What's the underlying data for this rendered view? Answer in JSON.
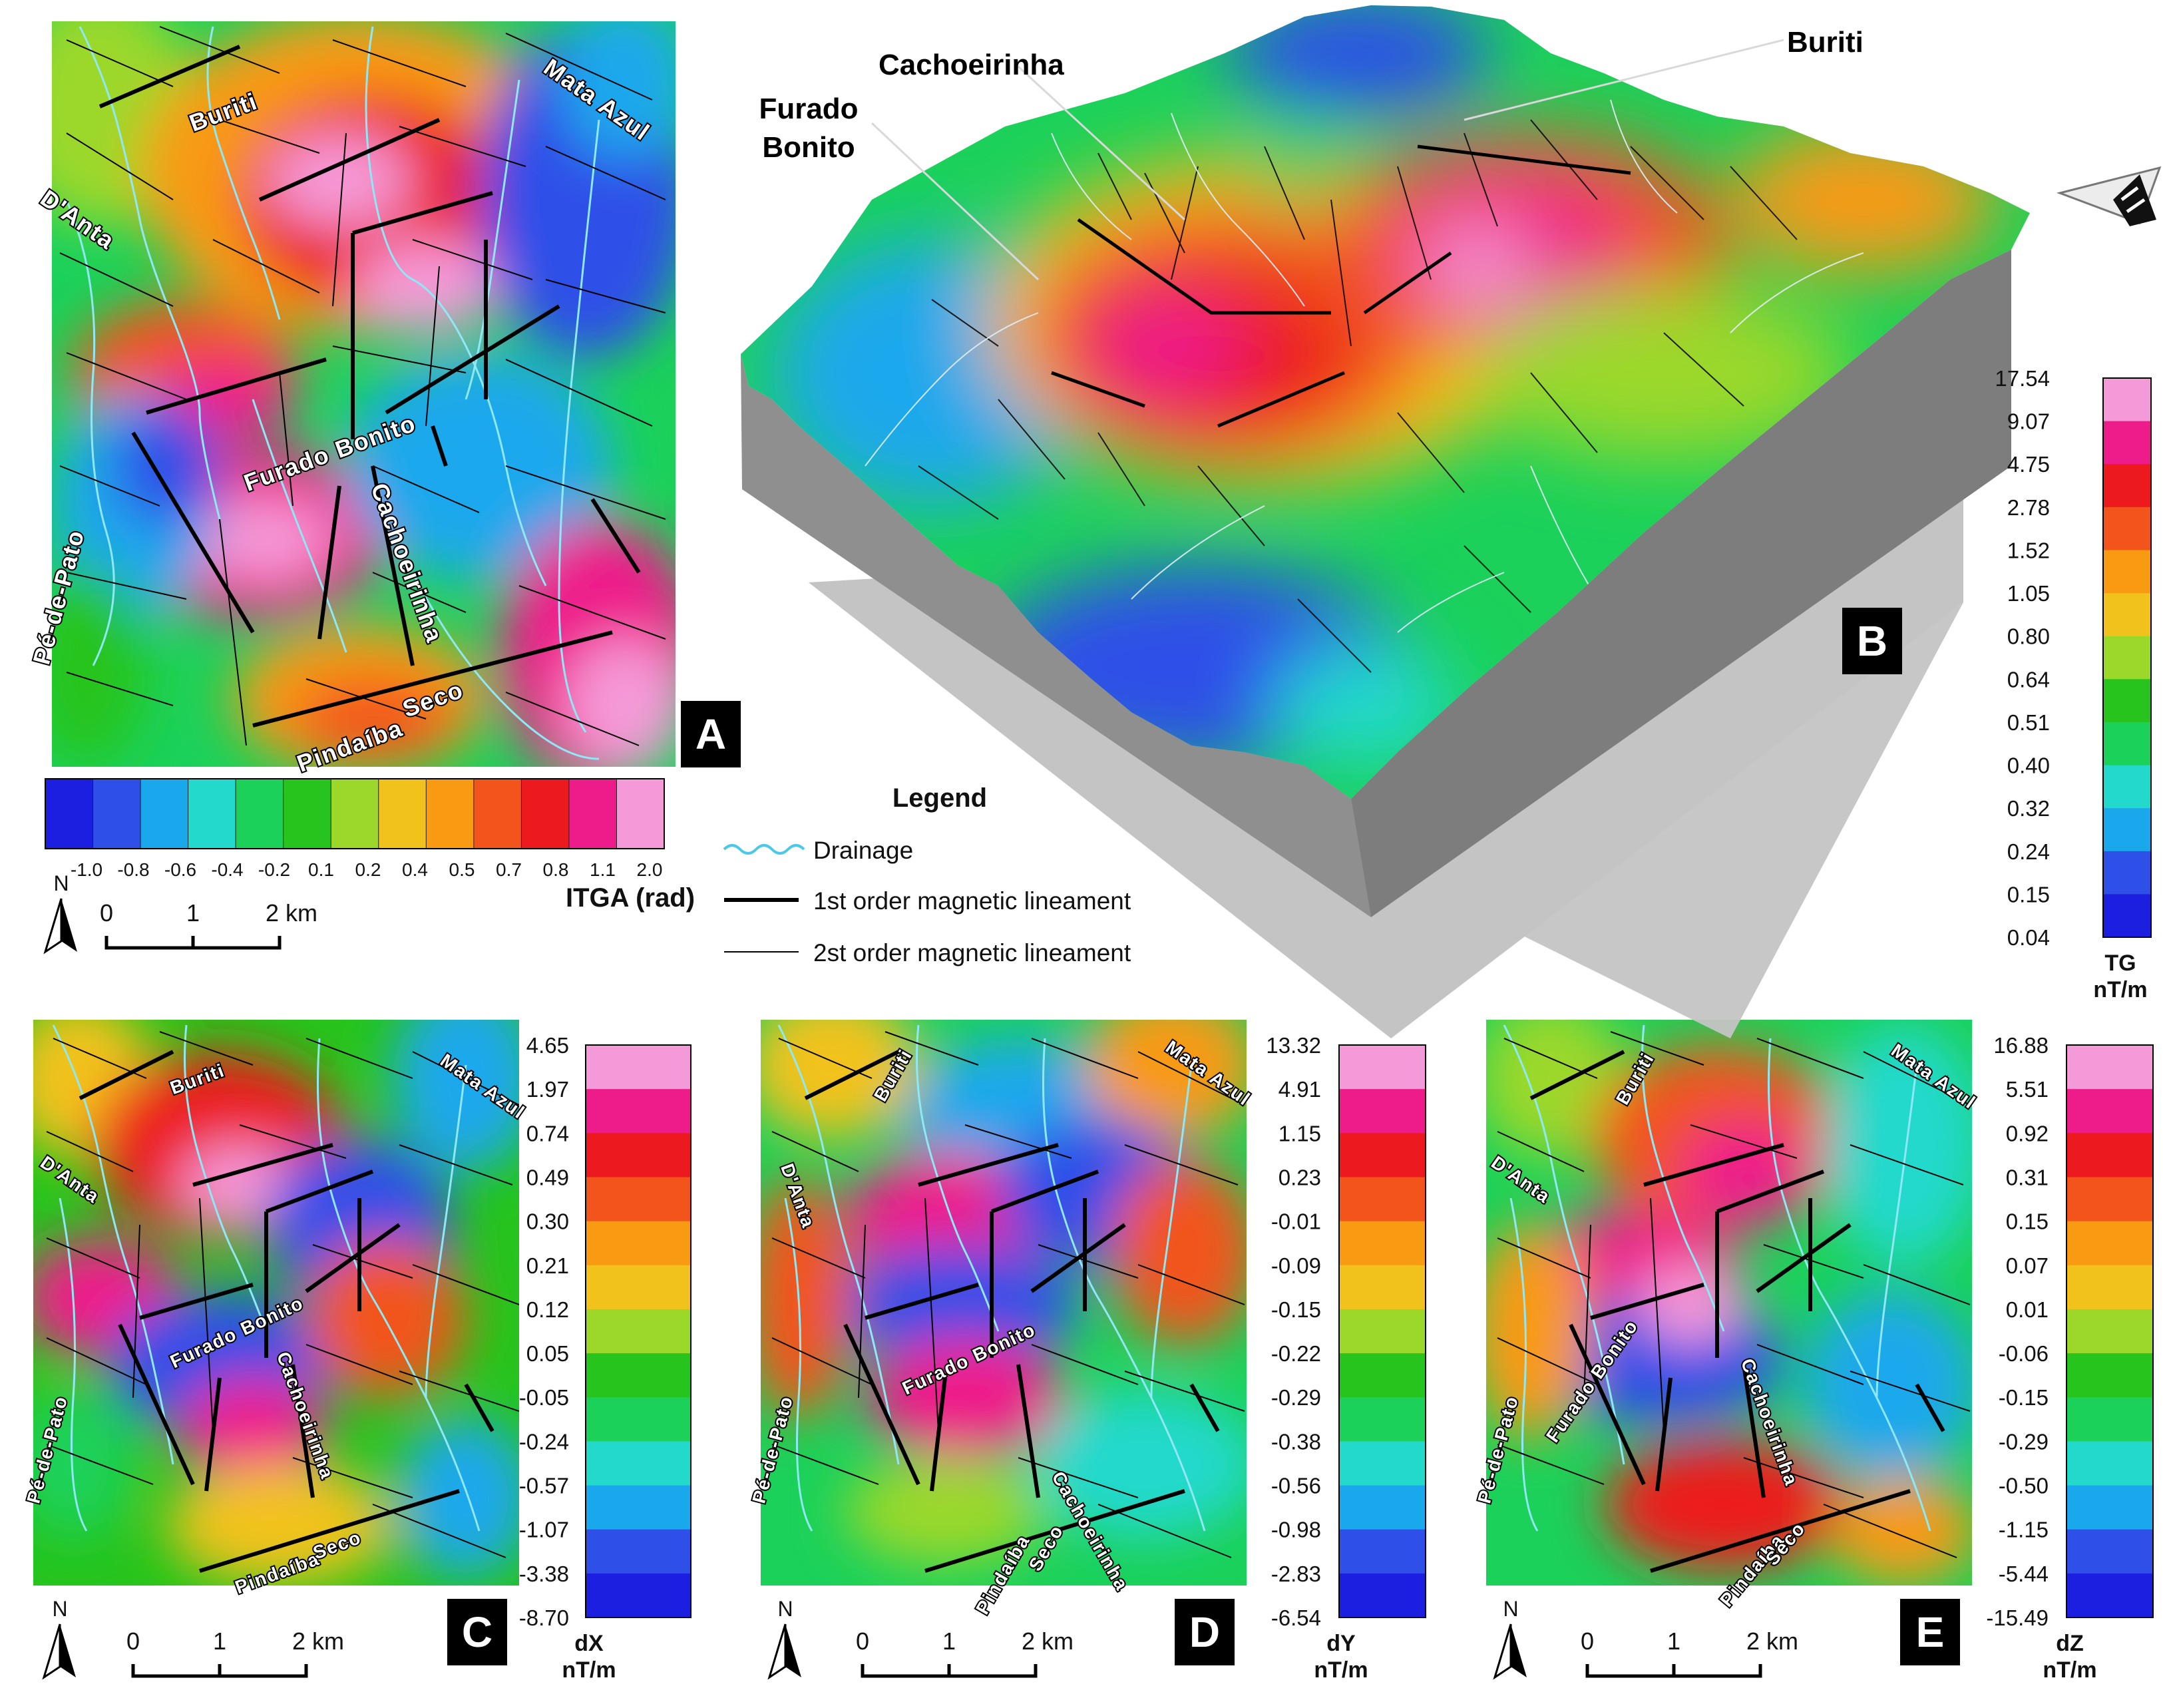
{
  "panel_a": {
    "letter": "A",
    "places": [
      "Buriti",
      "Mata Azul",
      "D'Anta",
      "Furado Bonito",
      "Cachoeirinha",
      "Pé-de-Pato",
      "Pindaíba",
      "Seco"
    ],
    "legend_ticks": [
      "-1.0",
      "-0.8",
      "-0.6",
      "-0.4",
      "-0.2",
      "0.1",
      "0.2",
      "0.4",
      "0.5",
      "0.7",
      "0.8",
      "1.1",
      "2.0"
    ],
    "legend_title": "ITGA (rad)",
    "scalebar": {
      "labels": [
        "0",
        "1",
        "2 km"
      ]
    },
    "north": "N"
  },
  "panel_b": {
    "letter": "B",
    "callouts": [
      "Cachoeirinha",
      "Buriti",
      "Furado",
      "Bonito"
    ],
    "colorbar_ticks": [
      "17.54",
      "9.07",
      "4.75",
      "2.78",
      "1.52",
      "1.05",
      "0.80",
      "0.64",
      "0.51",
      "0.40",
      "0.32",
      "0.24",
      "0.15",
      "0.04"
    ],
    "unit_line1": "TG",
    "unit_line2": "nT/m"
  },
  "legend": {
    "title": "Legend",
    "items": [
      "Drainage",
      "1st order magnetic lineament",
      "2st order magnetic lineament"
    ]
  },
  "panel_c": {
    "letter": "C",
    "places": [
      "Buriti",
      "Mata Azul",
      "D'Anta",
      "Furado Bonito",
      "Cachoeirinha",
      "Pé-de-Pato",
      "Pindaíba",
      "Seco"
    ],
    "colorbar_ticks": [
      "4.65",
      "1.97",
      "0.74",
      "0.49",
      "0.30",
      "0.21",
      "0.12",
      "0.05",
      "-0.05",
      "-0.24",
      "-0.57",
      "-1.07",
      "-3.38",
      "-8.70"
    ],
    "unit_line1": "dX",
    "unit_line2": "nT/m",
    "scalebar": {
      "labels": [
        "0",
        "1",
        "2 km"
      ]
    },
    "north": "N"
  },
  "panel_d": {
    "letter": "D",
    "places": [
      "Buriti",
      "Mata Azul",
      "D'Anta",
      "Furado Bonito",
      "Cachoeirinha",
      "Pé-de-Pato",
      "Pindaíba",
      "Seco"
    ],
    "colorbar_ticks": [
      "13.32",
      "4.91",
      "1.15",
      "0.23",
      "-0.01",
      "-0.09",
      "-0.15",
      "-0.22",
      "-0.29",
      "-0.38",
      "-0.56",
      "-0.98",
      "-2.83",
      "-6.54"
    ],
    "unit_line1": "dY",
    "unit_line2": "nT/m",
    "scalebar": {
      "labels": [
        "0",
        "1",
        "2 km"
      ]
    },
    "north": "N"
  },
  "panel_e": {
    "letter": "E",
    "places": [
      "Buriti",
      "Mata Azul",
      "D'Anta",
      "Furado Bonito",
      "Cachoeirinha",
      "Pé-de-Pato",
      "Pindaíba",
      "Seco"
    ],
    "colorbar_ticks": [
      "16.88",
      "5.51",
      "0.92",
      "0.31",
      "0.15",
      "0.07",
      "0.01",
      "-0.06",
      "-0.15",
      "-0.29",
      "-0.50",
      "-1.15",
      "-5.44",
      "-15.49"
    ],
    "unit_line1": "dZ",
    "unit_line2": "nT/m",
    "scalebar": {
      "labels": [
        "0",
        "1",
        "2 km"
      ]
    },
    "north": "N"
  },
  "colors": {
    "ramp_low_to_high": [
      "#1c1fe0",
      "#2e4fe8",
      "#1aa8ec",
      "#22d9cc",
      "#1bd15a",
      "#26c41c",
      "#9bd82a",
      "#f2c21c",
      "#f89a12",
      "#f2541c",
      "#ec1a1e",
      "#ee1c8a",
      "#f59ad8"
    ],
    "drainage": "#7fe0f0",
    "lineament": "#000000",
    "block_side": "#8c8c8c",
    "shadow": "#c4c4c4"
  }
}
